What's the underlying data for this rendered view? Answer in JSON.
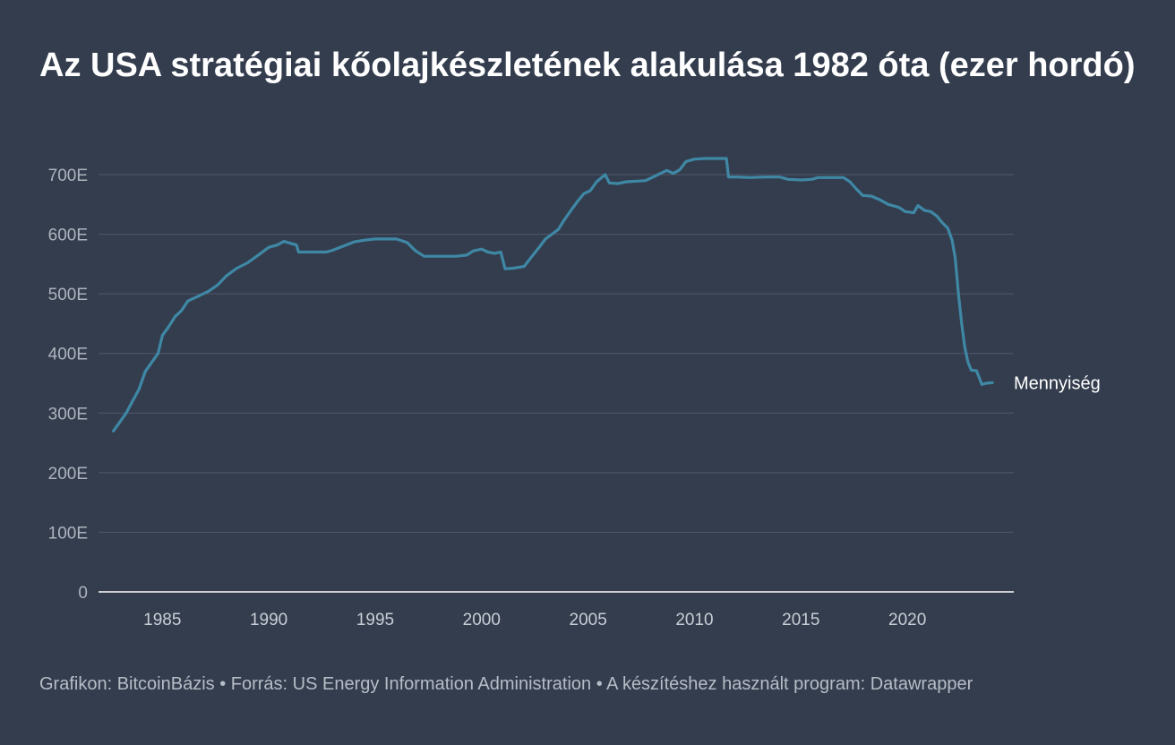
{
  "chart_data": {
    "type": "line",
    "title": "Az USA stratégiai kőolajkészletének alakulása 1982 óta (ezer hordó)",
    "xlabel": "",
    "ylabel": "",
    "xlim": [
      1982,
      2025
    ],
    "ylim": [
      0,
      700000
    ],
    "x_ticks": [
      1985,
      1990,
      1995,
      2000,
      2005,
      2010,
      2015,
      2020
    ],
    "x_tick_labels": [
      "1985",
      "1990",
      "1995",
      "2000",
      "2005",
      "2010",
      "2015",
      "2020"
    ],
    "y_ticks": [
      0,
      100000,
      200000,
      300000,
      400000,
      500000,
      600000,
      700000
    ],
    "y_tick_labels": [
      "0",
      "100E",
      "200E",
      "300E",
      "400E",
      "500E",
      "600E",
      "700E"
    ],
    "grid": true,
    "legend": "none",
    "series": [
      {
        "name": "Mennyiség",
        "color": "#3f88a5",
        "points": [
          [
            1982.7,
            270000
          ],
          [
            1983.0,
            285000
          ],
          [
            1983.3,
            300000
          ],
          [
            1983.6,
            320000
          ],
          [
            1983.9,
            340000
          ],
          [
            1984.2,
            370000
          ],
          [
            1984.5,
            385000
          ],
          [
            1984.8,
            400000
          ],
          [
            1985.0,
            430000
          ],
          [
            1985.3,
            445000
          ],
          [
            1985.6,
            462000
          ],
          [
            1985.9,
            472000
          ],
          [
            1986.2,
            488000
          ],
          [
            1986.5,
            493000
          ],
          [
            1986.8,
            498000
          ],
          [
            1987.2,
            505000
          ],
          [
            1987.6,
            515000
          ],
          [
            1988.0,
            530000
          ],
          [
            1988.5,
            543000
          ],
          [
            1989.0,
            552000
          ],
          [
            1989.5,
            565000
          ],
          [
            1990.0,
            578000
          ],
          [
            1990.4,
            582000
          ],
          [
            1990.7,
            588000
          ],
          [
            1991.0,
            585000
          ],
          [
            1991.3,
            582000
          ],
          [
            1991.4,
            570000
          ],
          [
            1992.0,
            570000
          ],
          [
            1992.7,
            570000
          ],
          [
            1993.0,
            573000
          ],
          [
            1993.5,
            580000
          ],
          [
            1994.0,
            587000
          ],
          [
            1994.5,
            590000
          ],
          [
            1995.0,
            592000
          ],
          [
            1995.5,
            592000
          ],
          [
            1996.0,
            592000
          ],
          [
            1996.5,
            586000
          ],
          [
            1996.9,
            572000
          ],
          [
            1997.3,
            563000
          ],
          [
            1998.0,
            563000
          ],
          [
            1998.8,
            563000
          ],
          [
            1999.3,
            565000
          ],
          [
            1999.6,
            572000
          ],
          [
            2000.0,
            575000
          ],
          [
            2000.3,
            570000
          ],
          [
            2000.6,
            568000
          ],
          [
            2000.9,
            570000
          ],
          [
            2001.1,
            542000
          ],
          [
            2001.5,
            543000
          ],
          [
            2002.0,
            546000
          ],
          [
            2002.3,
            560000
          ],
          [
            2002.7,
            578000
          ],
          [
            2003.0,
            592000
          ],
          [
            2003.3,
            600000
          ],
          [
            2003.6,
            608000
          ],
          [
            2003.9,
            625000
          ],
          [
            2004.2,
            640000
          ],
          [
            2004.5,
            655000
          ],
          [
            2004.8,
            668000
          ],
          [
            2005.1,
            673000
          ],
          [
            2005.4,
            688000
          ],
          [
            2005.8,
            700000
          ],
          [
            2006.0,
            686000
          ],
          [
            2006.4,
            685000
          ],
          [
            2006.8,
            688000
          ],
          [
            2007.3,
            689000
          ],
          [
            2007.7,
            690000
          ],
          [
            2008.0,
            695000
          ],
          [
            2008.4,
            702000
          ],
          [
            2008.7,
            707000
          ],
          [
            2009.0,
            702000
          ],
          [
            2009.3,
            708000
          ],
          [
            2009.6,
            722000
          ],
          [
            2010.0,
            726000
          ],
          [
            2010.5,
            727000
          ],
          [
            2011.0,
            727000
          ],
          [
            2011.5,
            727000
          ],
          [
            2011.6,
            696000
          ],
          [
            2012.0,
            696000
          ],
          [
            2012.6,
            695000
          ],
          [
            2013.3,
            696000
          ],
          [
            2014.0,
            696000
          ],
          [
            2014.4,
            692000
          ],
          [
            2015.0,
            691000
          ],
          [
            2015.5,
            692000
          ],
          [
            2015.8,
            695000
          ],
          [
            2016.5,
            695000
          ],
          [
            2017.0,
            695000
          ],
          [
            2017.3,
            688000
          ],
          [
            2017.6,
            676000
          ],
          [
            2017.9,
            665000
          ],
          [
            2018.3,
            664000
          ],
          [
            2018.7,
            658000
          ],
          [
            2019.1,
            650000
          ],
          [
            2019.6,
            645000
          ],
          [
            2019.9,
            638000
          ],
          [
            2020.3,
            636000
          ],
          [
            2020.5,
            648000
          ],
          [
            2020.8,
            640000
          ],
          [
            2021.1,
            638000
          ],
          [
            2021.4,
            630000
          ],
          [
            2021.6,
            621000
          ],
          [
            2021.9,
            610000
          ],
          [
            2022.1,
            590000
          ],
          [
            2022.25,
            560000
          ],
          [
            2022.4,
            500000
          ],
          [
            2022.55,
            450000
          ],
          [
            2022.7,
            410000
          ],
          [
            2022.85,
            385000
          ],
          [
            2023.0,
            372000
          ],
          [
            2023.25,
            371000
          ],
          [
            2023.5,
            348000
          ],
          [
            2023.7,
            350000
          ],
          [
            2024.0,
            351000
          ]
        ]
      }
    ]
  },
  "footer": "Grafikon: BitcoinBázis • Forrás: US Energy Information Administration • A készítéshez használt program: Datawrapper"
}
